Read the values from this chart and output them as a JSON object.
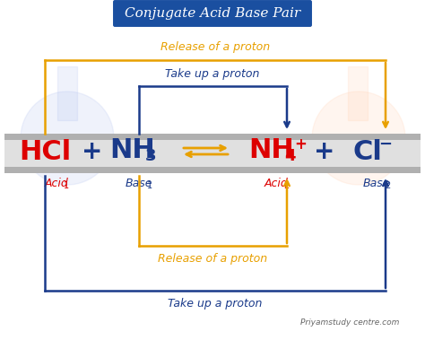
{
  "title": "Conjugate Acid Base Pair",
  "title_bg": "#1a4fa0",
  "title_color": "white",
  "bg_color": "#ffffff",
  "text_release_top": "Release of a proton",
  "text_takeup_top": "Take up a proton",
  "text_release_bottom": "Release of a proton",
  "text_takeup_bottom": "Take up a proton",
  "watermark": "Priyamstudy centre.com",
  "orange": "#e8a000",
  "blue": "#1a3a8a"
}
